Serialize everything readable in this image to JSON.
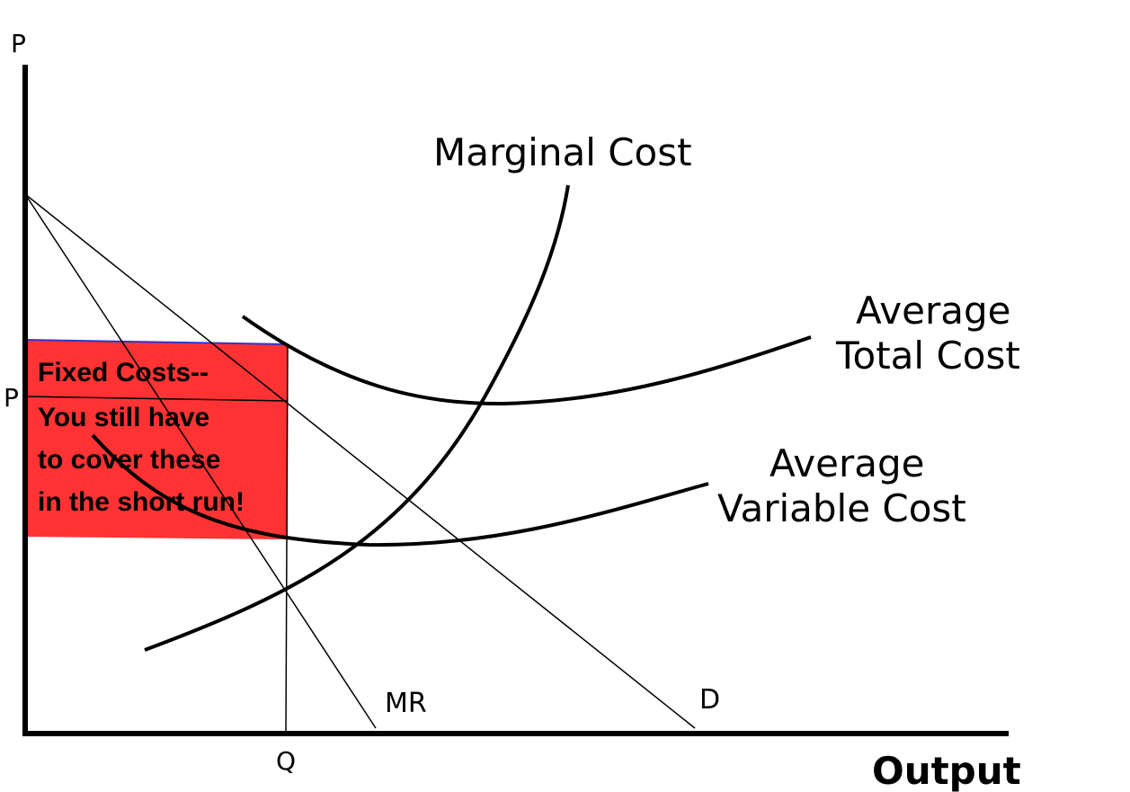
{
  "diagram": {
    "axis_y_label": "P",
    "axis_x_label": "Output",
    "price_tick_label": "P",
    "quantity_tick_label": "Q",
    "curves": {
      "marginal_cost": "Marginal Cost",
      "average_total_cost_line1": "Average",
      "average_total_cost_line2": "Total Cost",
      "average_variable_cost_line1": "Average",
      "average_variable_cost_line2": "Variable Cost",
      "marginal_revenue": "MR",
      "demand": "D"
    },
    "fixed_costs_box": {
      "line1": "Fixed Costs--",
      "line2": "You still have",
      "line3": "to cover these",
      "line4": "in the short run!",
      "fill_color": "#ff3333",
      "border_color": "#3333cc"
    }
  }
}
